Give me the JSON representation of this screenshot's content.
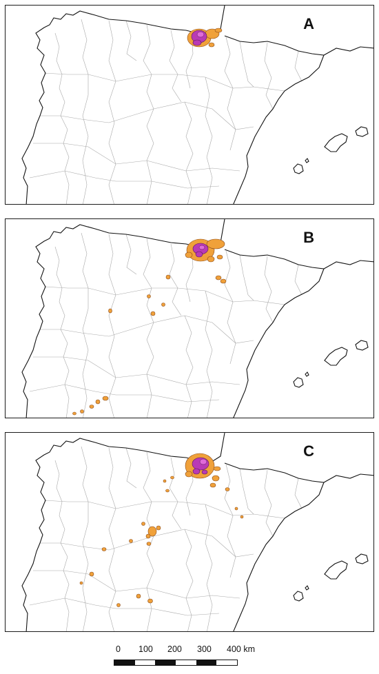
{
  "panels": [
    {
      "id": "panel-a",
      "label": "A"
    },
    {
      "id": "panel-b",
      "label": "B"
    },
    {
      "id": "panel-c",
      "label": "C"
    }
  ],
  "colors": {
    "low_density": "#f0a13a",
    "high_density": "#b93ab5",
    "peak_density": "#e06ad8",
    "coastline": "#111111",
    "province_border": "#a8a8a8"
  },
  "scale_bar": {
    "labels": [
      "0",
      "100",
      "200",
      "300",
      "400 km"
    ],
    "segment_colors": [
      "#111111",
      "#ffffff",
      "#111111",
      "#ffffff",
      "#111111",
      "#ffffff"
    ]
  }
}
